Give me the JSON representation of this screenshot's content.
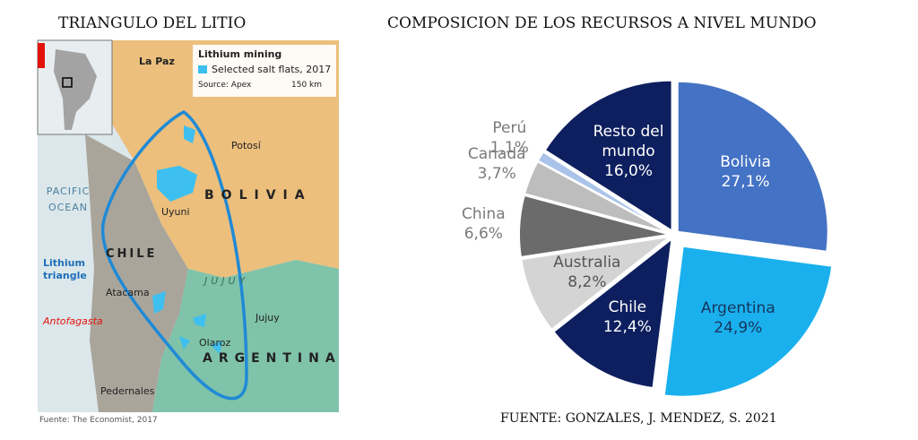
{
  "left_title": "TRIANGULO DEL LITIO",
  "footer": "FUENTE: GONZALES, J. MENDEZ, S. 2021",
  "map": {
    "legend": {
      "title": "Lithium mining",
      "item": "Selected salt flats, 2017",
      "source": "Source: Apex",
      "scale": "150 km"
    },
    "places": {
      "la_paz": "La Paz",
      "potosi": "Potosí",
      "bolivia": "BOLIVIA",
      "ocean": "PACIFIC OCEAN",
      "uyuni": "Uyuni",
      "chile": "CHILE",
      "triangle": "Lithium triangle",
      "atacama": "Atacama",
      "jujuy_region": "JUJUY",
      "jujuy": "Jujuy",
      "antofagasta": "Antofagasta",
      "olaroz": "Olaroz",
      "argentina": "ARGENTINA",
      "pedernales": "Pedernales"
    },
    "credit": "Fuente: The Economist, 2017"
  },
  "chart_data": {
    "type": "pie",
    "title": "COMPOSICION DE LOS RECURSOS A NIVEL MUNDO",
    "categories": [
      "Bolivia",
      "Argentina",
      "Chile",
      "Australia",
      "China",
      "Canadá",
      "Perú",
      "Resto del mundo"
    ],
    "values": [
      27.1,
      24.9,
      12.4,
      8.2,
      6.6,
      3.7,
      1.1,
      16.0
    ],
    "value_labels": [
      "27,1%",
      "24,9%",
      "12,4%",
      "8,2%",
      "6,6%",
      "3,7%",
      "1,1%",
      "16,0%"
    ],
    "colors": [
      "#4472c4",
      "#1ab0ee",
      "#0d1f5e",
      "#d4d4d4",
      "#6b6b6b",
      "#bdbdbd",
      "#a9c3ea",
      "#0d1f5e"
    ]
  }
}
